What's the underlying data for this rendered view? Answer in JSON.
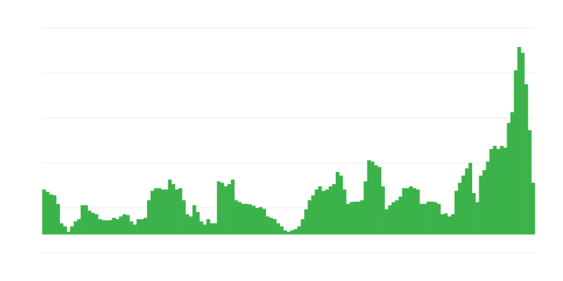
{
  "chart_data": {
    "type": "bar",
    "color": "#3bb34a",
    "grid": true,
    "grid_color": "#ebebeb",
    "bar_base": 41,
    "ylim": [
      0,
      500
    ],
    "yticks": [
      0,
      100,
      200,
      300,
      400,
      500
    ],
    "values": [
      141,
      136,
      130,
      128,
      109,
      66,
      59,
      47,
      59,
      70,
      75,
      106,
      106,
      94,
      89,
      86,
      75,
      73,
      72,
      73,
      78,
      75,
      81,
      86,
      84,
      70,
      63,
      75,
      75,
      78,
      117,
      138,
      144,
      144,
      141,
      141,
      163,
      153,
      141,
      144,
      117,
      86,
      81,
      106,
      91,
      70,
      63,
      75,
      66,
      66,
      159,
      156,
      148,
      153,
      163,
      117,
      113,
      109,
      109,
      108,
      105,
      100,
      102,
      98,
      81,
      78,
      75,
      66,
      59,
      50,
      47,
      50,
      53,
      59,
      75,
      97,
      117,
      128,
      141,
      148,
      138,
      141,
      148,
      153,
      180,
      172,
      141,
      109,
      113,
      114,
      114,
      117,
      159,
      206,
      203,
      195,
      191,
      148,
      97,
      106,
      113,
      117,
      125,
      144,
      144,
      148,
      144,
      141,
      109,
      109,
      114,
      114,
      113,
      109,
      86,
      88,
      81,
      86,
      138,
      156,
      172,
      188,
      200,
      133,
      113,
      172,
      184,
      203,
      231,
      238,
      231,
      238,
      234,
      289,
      313,
      406,
      458,
      445,
      375,
      273,
      156
    ]
  }
}
